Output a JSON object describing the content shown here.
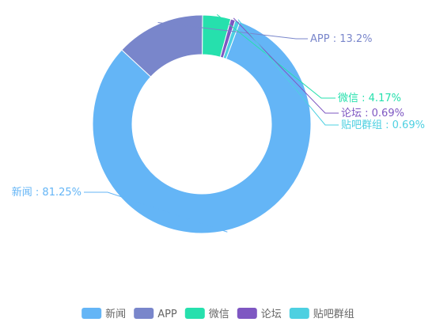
{
  "chart_data": {
    "type": "pie",
    "donut": true,
    "legend_position": "bottom",
    "categories": [
      "新闻",
      "APP",
      "微信",
      "论坛",
      "贴吧群组"
    ],
    "values": [
      81.25,
      13.2,
      4.17,
      0.69,
      0.69
    ],
    "labels": [
      "新闻 : 81.25%",
      "APP : 13.2%",
      "微信 : 4.17%",
      "论坛 : 0.69%",
      "贴吧群组 : 0.69%"
    ],
    "colors": [
      "#64b5f6",
      "#7986cb",
      "#26e0ad",
      "#7e57c2",
      "#4dd0e1"
    ]
  }
}
